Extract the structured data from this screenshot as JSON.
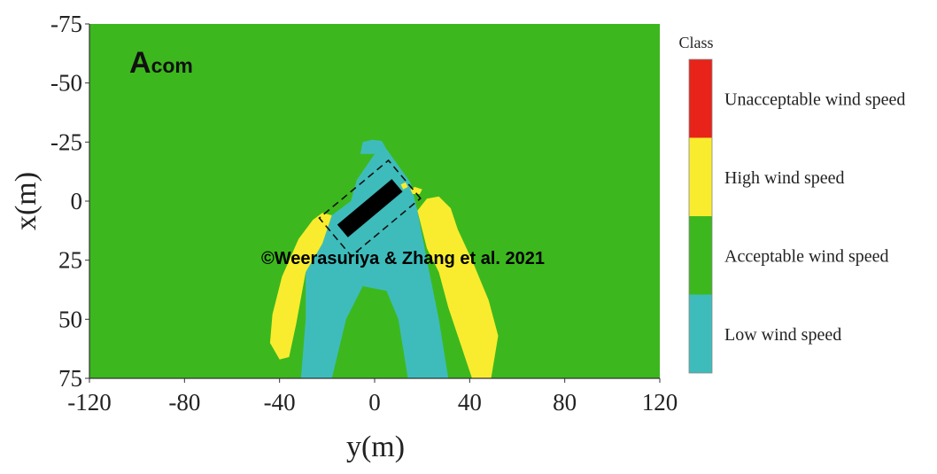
{
  "chart_data": {
    "type": "heatmap",
    "panel_label_main": "A",
    "panel_label_sub": "com",
    "xlabel": "y(m)",
    "ylabel": "x(m)",
    "xlim": [
      -120,
      120
    ],
    "ylim": [
      -75,
      75
    ],
    "y_axis_reversed": true,
    "x_ticks": [
      "-120",
      "-80",
      "-40",
      "0",
      "40",
      "80",
      "120"
    ],
    "y_ticks": [
      "-75",
      "-50",
      "-25",
      "0",
      "25",
      "50",
      "75"
    ],
    "legend": {
      "title": "Class",
      "placement": "right",
      "classes": [
        {
          "label": "Unacceptable wind speed",
          "color": "#e8231a"
        },
        {
          "label": "High wind speed",
          "color": "#f9ec2e"
        },
        {
          "label": "Acceptable wind speed",
          "color": "#3cb81e"
        },
        {
          "label": "Low wind speed",
          "color": "#3ebcbc"
        }
      ]
    },
    "background_class": "Acceptable wind speed",
    "building_color": "#000000",
    "copyright": "©Weerasuriya & Zhang et al. 2021",
    "regions": [
      {
        "class": "Low wind speed",
        "points": [
          [
            -7.5,
            -9
          ],
          [
            0,
            -20
          ],
          [
            5,
            -22
          ],
          [
            15,
            -8
          ],
          [
            18,
            4
          ],
          [
            22,
            25
          ],
          [
            27,
            50
          ],
          [
            31,
            75
          ],
          [
            14,
            75
          ],
          [
            10,
            50
          ],
          [
            5,
            38
          ],
          [
            -5,
            36
          ],
          [
            -12,
            50
          ],
          [
            -18,
            75
          ],
          [
            -31,
            75
          ],
          [
            -29,
            50
          ],
          [
            -29,
            30
          ],
          [
            -22,
            18
          ],
          [
            -18,
            6
          ],
          [
            -10,
            0
          ]
        ]
      },
      {
        "class": "Low wind speed",
        "points": [
          [
            -6,
            -20
          ],
          [
            -5,
            -25
          ],
          [
            -1,
            -26
          ],
          [
            3,
            -25.5
          ],
          [
            5,
            -22
          ],
          [
            0,
            -20
          ]
        ]
      },
      {
        "class": "High wind speed",
        "points": [
          [
            -22,
            5
          ],
          [
            -26,
            8
          ],
          [
            -32,
            16
          ],
          [
            -39,
            32
          ],
          [
            -43,
            48
          ],
          [
            -44,
            60
          ],
          [
            -40,
            67
          ],
          [
            -36,
            66
          ],
          [
            -33,
            52
          ],
          [
            -29,
            30
          ],
          [
            -22,
            18
          ],
          [
            -18,
            6
          ]
        ]
      },
      {
        "class": "High wind speed",
        "points": [
          [
            22,
            -1
          ],
          [
            27,
            -2
          ],
          [
            32,
            3
          ],
          [
            35,
            12
          ],
          [
            41,
            25
          ],
          [
            48,
            42
          ],
          [
            52,
            57
          ],
          [
            49,
            75
          ],
          [
            41,
            75
          ],
          [
            36,
            60
          ],
          [
            31,
            45
          ],
          [
            27,
            30
          ],
          [
            22,
            20
          ],
          [
            18,
            4
          ]
        ]
      },
      {
        "class": "High wind speed",
        "points": [
          [
            15,
            -5
          ],
          [
            17,
            -6
          ],
          [
            20,
            -5
          ],
          [
            19,
            -3
          ],
          [
            16,
            -3
          ]
        ]
      },
      {
        "class": "High wind speed",
        "points": [
          [
            11,
            -7
          ],
          [
            13,
            -8
          ],
          [
            14,
            -6
          ],
          [
            12,
            -5
          ]
        ]
      }
    ],
    "building": {
      "center": [
        -2,
        3
      ],
      "length": 30,
      "width": 7,
      "angle_deg": -40
    },
    "dashed_box": {
      "center": [
        -2,
        3
      ],
      "length": 38,
      "width": 21,
      "angle_deg": -40
    }
  }
}
